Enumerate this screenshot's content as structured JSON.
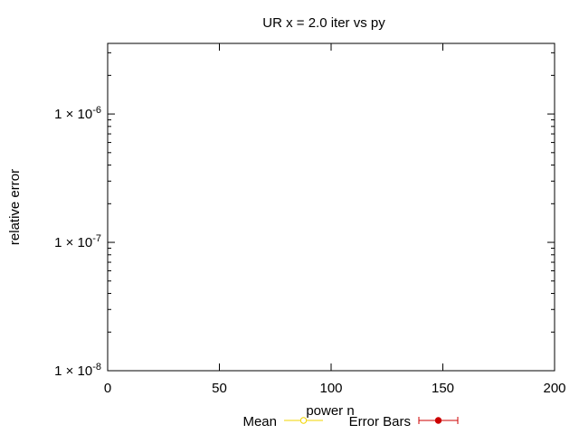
{
  "chart_data": {
    "type": "line",
    "title": "UR x = 2.0 iter vs py",
    "xlabel": "power n",
    "ylabel": "relative error",
    "xlim": [
      0,
      200
    ],
    "ylim_log10": [
      -8,
      -5.45
    ],
    "yscale": "log",
    "grid": false,
    "x_ticks": [
      {
        "value": 0,
        "label": "0"
      },
      {
        "value": 50,
        "label": "50"
      },
      {
        "value": 100,
        "label": "100"
      },
      {
        "value": 150,
        "label": "150"
      },
      {
        "value": 200,
        "label": "200"
      }
    ],
    "y_ticks": [
      {
        "exp": -6,
        "base": "1 × 10",
        "sup": "-6"
      },
      {
        "exp": -7,
        "base": "1 × 10",
        "sup": "-7"
      },
      {
        "exp": -8,
        "base": "1 × 10",
        "sup": "-8"
      }
    ],
    "legend_position": "bottom-center",
    "series": [
      {
        "name": "Mean",
        "color": "#f2d500",
        "marker": "open-circle",
        "values": []
      },
      {
        "name": "Error Bars",
        "color": "#cc0000",
        "marker": "filled-circle",
        "values": []
      }
    ]
  }
}
